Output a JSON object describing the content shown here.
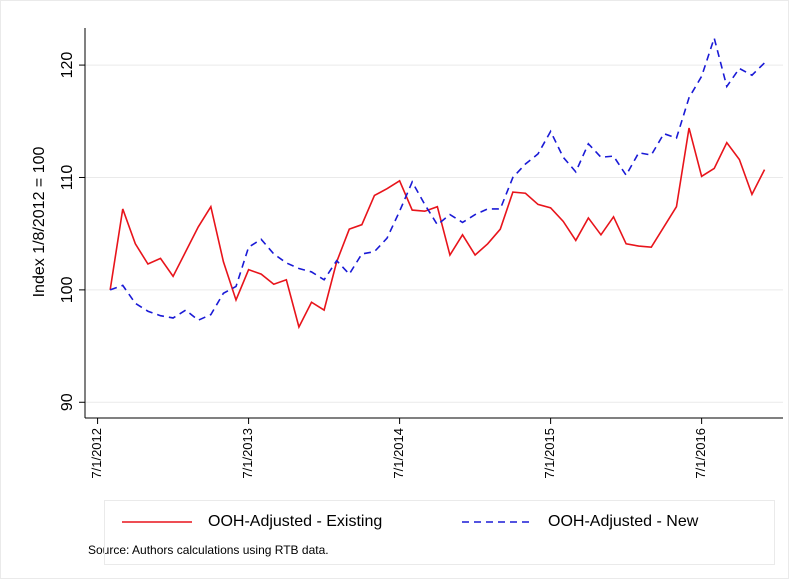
{
  "chart_data": {
    "type": "line",
    "y_label": "Index 1/8/2012 = 100",
    "source": "Source: Authors calculations using RTB data.",
    "x": [
      "8/1/2012",
      "9/1/2012",
      "10/1/2012",
      "11/1/2012",
      "12/1/2012",
      "1/1/2013",
      "2/1/2013",
      "3/1/2013",
      "4/1/2013",
      "5/1/2013",
      "6/1/2013",
      "7/1/2013",
      "8/1/2013",
      "9/1/2013",
      "10/1/2013",
      "11/1/2013",
      "12/1/2013",
      "1/1/2014",
      "2/1/2014",
      "3/1/2014",
      "4/1/2014",
      "5/1/2014",
      "6/1/2014",
      "7/1/2014",
      "8/1/2014",
      "9/1/2014",
      "10/1/2014",
      "11/1/2014",
      "12/1/2014",
      "1/1/2015",
      "2/1/2015",
      "3/1/2015",
      "4/1/2015",
      "5/1/2015",
      "6/1/2015",
      "7/1/2015",
      "8/1/2015",
      "9/1/2015",
      "10/1/2015",
      "11/1/2015",
      "12/1/2015",
      "1/1/2016",
      "2/1/2016",
      "3/1/2016",
      "4/1/2016",
      "5/1/2016",
      "6/1/2016",
      "7/1/2016",
      "8/1/2016",
      "9/1/2016",
      "10/1/2016",
      "11/1/2016",
      "12/1/2016"
    ],
    "series": [
      {
        "name": "OOH-Adjusted - Existing",
        "color": "#e8141b",
        "dash": false,
        "values": [
          100,
          107.2,
          104.1,
          102.3,
          102.8,
          101.2,
          103.4,
          105.6,
          107.4,
          102.5,
          99.1,
          101.8,
          101.4,
          100.5,
          100.9,
          96.7,
          98.9,
          98.2,
          102.5,
          105.4,
          105.8,
          108.4,
          109,
          109.7,
          107.1,
          107,
          107.4,
          103.1,
          104.9,
          103.1,
          104.1,
          105.4,
          108.7,
          108.6,
          107.6,
          107.3,
          106.1,
          104.4,
          106.4,
          104.9,
          106.5,
          104.1,
          103.9,
          103.8,
          105.6,
          107.4,
          114.4,
          110.1,
          110.8,
          113.1,
          111.6,
          108.5,
          110.7
        ]
      },
      {
        "name": "OOH-Adjusted - New",
        "color": "#1a1ad6",
        "dash": true,
        "values": [
          100,
          100.4,
          98.8,
          98.1,
          97.7,
          97.5,
          98.2,
          97.3,
          97.8,
          99.7,
          100.3,
          103.8,
          104.5,
          103.2,
          102.4,
          101.9,
          101.6,
          100.9,
          102.6,
          101.4,
          103.2,
          103.4,
          104.6,
          107,
          109.6,
          107.6,
          105.8,
          106.7,
          106,
          106.7,
          107.2,
          107.2,
          110,
          111.2,
          112.1,
          114.1,
          111.8,
          110.5,
          113,
          111.8,
          111.9,
          110.2,
          112.2,
          112,
          113.9,
          113.5,
          117.1,
          119,
          122.4,
          118.1,
          119.7,
          119.1,
          120.2
        ]
      }
    ],
    "xlim": [
      "6/1/2012",
      "1/15/2017"
    ],
    "xticks": [
      "7/1/2012",
      "7/1/2013",
      "7/1/2014",
      "7/1/2015",
      "7/1/2016"
    ],
    "ylim": [
      88.6,
      123.3
    ],
    "yticks": [
      90,
      100,
      110,
      120
    ],
    "grid": true,
    "legend": "bottom"
  }
}
